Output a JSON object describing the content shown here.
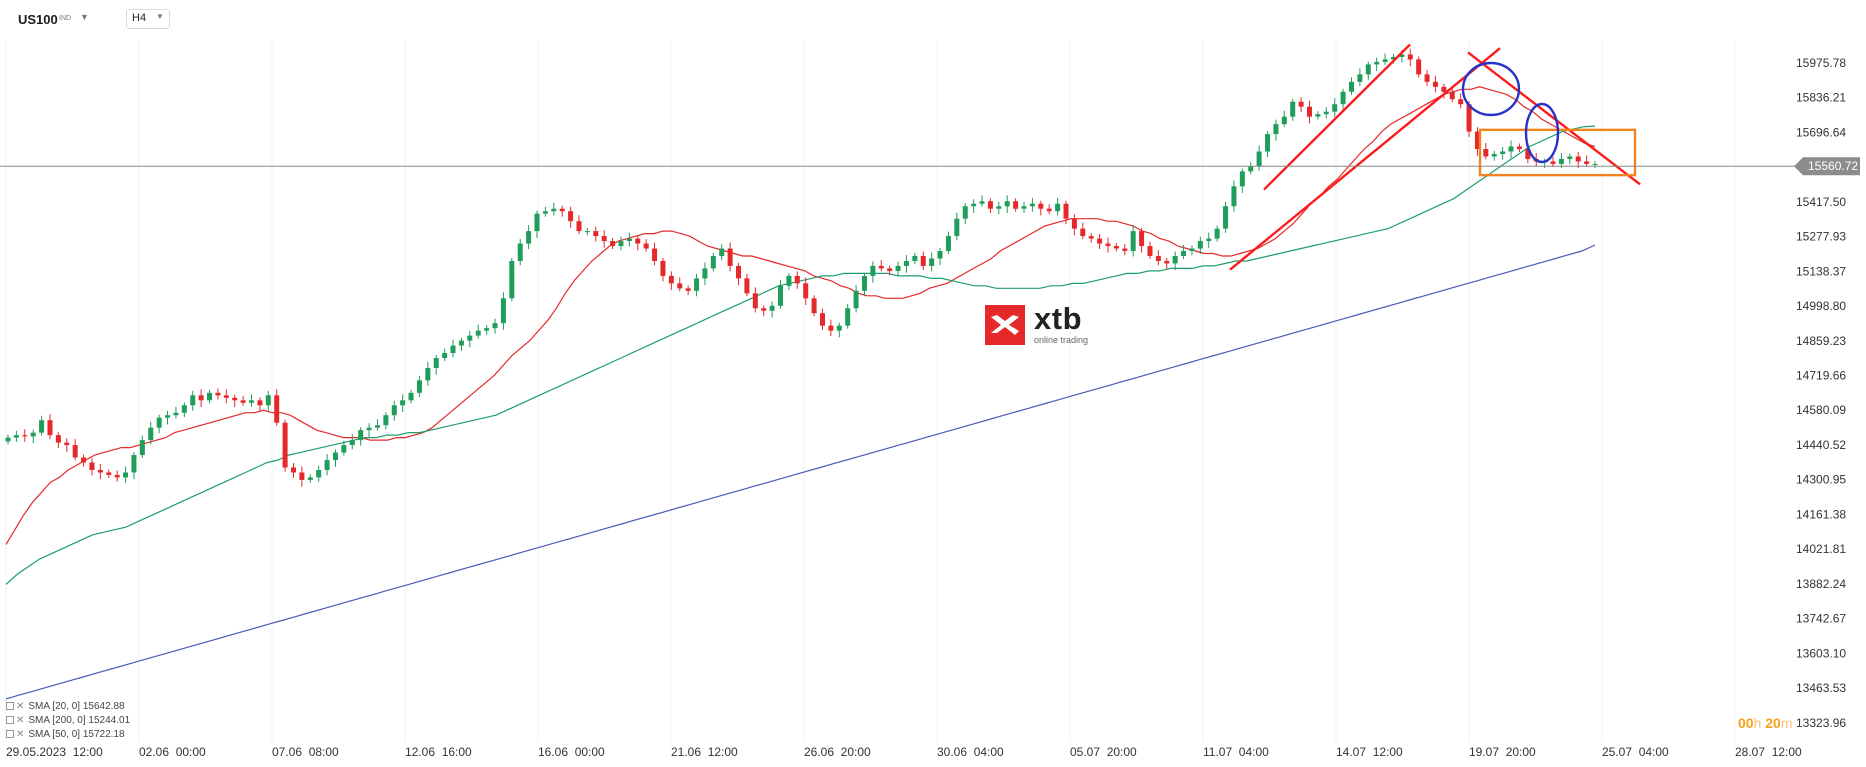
{
  "header": {
    "symbol": "US100",
    "symbol_suffix": "IND",
    "timeframe": "H4",
    "caret": "▼"
  },
  "logo": {
    "name": "xtb",
    "tagline": "online trading"
  },
  "legend": [
    {
      "label": "SMA [20, 0] 15642.88"
    },
    {
      "label": "SMA [200, 0] 15244.01"
    },
    {
      "label": "SMA [50, 0] 15722.18"
    }
  ],
  "countdown": {
    "hours": "00",
    "h_unit": "h",
    "minutes": "20",
    "m_unit": "m"
  },
  "colors": {
    "up": "#1e9e5a",
    "down": "#e5282a",
    "sma20": "#e5282a",
    "sma50": "#1e9e6e",
    "sma200": "#4a5ab8",
    "trend": "#ff1a1a",
    "box": "#f58220",
    "circle": "#2733c7",
    "current": "#888888"
  },
  "chart_data": {
    "type": "candlestick",
    "symbol": "US100",
    "timeframe": "H4",
    "ylim": [
      13254.7,
      16068.1
    ],
    "y_ticks": [
      "15975.78",
      "15836.21",
      "15696.64",
      "15417.50",
      "15277.93",
      "15138.37",
      "14998.80",
      "14859.23",
      "14719.66",
      "14580.09",
      "14440.52",
      "14300.95",
      "14161.38",
      "14021.81",
      "13882.24",
      "13742.67",
      "13603.10",
      "13463.53",
      "13323.96"
    ],
    "current_price": "15560.72",
    "current_price_value": 15560.72,
    "x_labels": [
      "29.05.2023  12:00",
      "02.06  00:00",
      "07.06  08:00",
      "12.06  16:00",
      "16.06  00:00",
      "21.06  12:00",
      "26.06  20:00",
      "30.06  04:00",
      "05.07  20:00",
      "11.07  04:00",
      "14.07  12:00",
      "19.07  20:00",
      "25.07  04:00",
      "28.07  12:00"
    ],
    "candle_closes": [
      14470,
      14480,
      14475,
      14490,
      14540,
      14480,
      14450,
      14440,
      14390,
      14370,
      14340,
      14330,
      14320,
      14310,
      14330,
      14400,
      14460,
      14510,
      14550,
      14560,
      14570,
      14600,
      14640,
      14620,
      14650,
      14640,
      14630,
      14620,
      14610,
      14620,
      14600,
      14640,
      14530,
      14350,
      14330,
      14300,
      14310,
      14340,
      14380,
      14410,
      14440,
      14460,
      14500,
      14510,
      14520,
      14560,
      14600,
      14620,
      14650,
      14700,
      14750,
      14790,
      14810,
      14840,
      14860,
      14880,
      14900,
      14910,
      14930,
      15030,
      15180,
      15250,
      15300,
      15370,
      15380,
      15390,
      15380,
      15340,
      15300,
      15300,
      15280,
      15260,
      15240,
      15260,
      15270,
      15250,
      15230,
      15180,
      15120,
      15090,
      15070,
      15060,
      15110,
      15150,
      15200,
      15230,
      15160,
      15110,
      15050,
      14990,
      14980,
      15000,
      15080,
      15120,
      15090,
      15030,
      14970,
      14920,
      14900,
      14920,
      14990,
      15060,
      15120,
      15160,
      15150,
      15140,
      15160,
      15180,
      15200,
      15160,
      15190,
      15220,
      15280,
      15350,
      15400,
      15410,
      15420,
      15390,
      15400,
      15420,
      15390,
      15400,
      15410,
      15390,
      15380,
      15410,
      15350,
      15310,
      15280,
      15270,
      15250,
      15240,
      15230,
      15220,
      15300,
      15240,
      15200,
      15180,
      15170,
      15200,
      15220,
      15230,
      15260,
      15270,
      15310,
      15400,
      15480,
      15540,
      15560,
      15620,
      15690,
      15730,
      15760,
      15820,
      15800,
      15760,
      15770,
      15780,
      15810,
      15860,
      15900,
      15930,
      15970,
      15980,
      15990,
      16000,
      16010,
      15990,
      15930,
      15900,
      15880,
      15860,
      15830,
      15810,
      15700,
      15630,
      15600,
      15610,
      15620,
      15640,
      15630,
      15590,
      15580,
      15580,
      15570,
      15590,
      15600,
      15580,
      15570,
      15570
    ],
    "series": [
      {
        "name": "SMA [20, 0] 15642.88",
        "start_index": 0,
        "values": [
          14040,
          14100,
          14160,
          14210,
          14250,
          14290,
          14310,
          14340,
          14360,
          14380,
          14400,
          14410,
          14420,
          14430,
          14430,
          14440,
          14450,
          14460,
          14470,
          14490,
          14500,
          14510,
          14520,
          14530,
          14540,
          14550,
          14560,
          14570,
          14570,
          14580,
          14570,
          14570,
          14560,
          14540,
          14520,
          14500,
          14490,
          14480,
          14470,
          14470,
          14470,
          14460,
          14460,
          14460,
          14470,
          14470,
          14480,
          14490,
          14510,
          14540,
          14570,
          14600,
          14630,
          14660,
          14690,
          14720,
          14760,
          14800,
          14830,
          14860,
          14900,
          14940,
          14990,
          15050,
          15100,
          15140,
          15180,
          15210,
          15240,
          15260,
          15270,
          15280,
          15290,
          15290,
          15300,
          15300,
          15290,
          15280,
          15260,
          15240,
          15230,
          15220,
          15210,
          15200,
          15200,
          15190,
          15180,
          15170,
          15160,
          15150,
          15140,
          15120,
          15110,
          15100,
          15080,
          15070,
          15050,
          15040,
          15040,
          15030,
          15030,
          15030,
          15040,
          15050,
          15070,
          15080,
          15090,
          15110,
          15130,
          15150,
          15170,
          15190,
          15220,
          15240,
          15260,
          15280,
          15300,
          15320,
          15330,
          15340,
          15350,
          15350,
          15350,
          15350,
          15340,
          15340,
          15330,
          15320,
          15300,
          15290,
          15270,
          15260,
          15240,
          15230,
          15220,
          15210,
          15210,
          15200,
          15200,
          15210,
          15220,
          15230,
          15250,
          15270,
          15300,
          15330,
          15370,
          15410,
          15440,
          15480,
          15510,
          15550,
          15590,
          15630,
          15660,
          15700,
          15730,
          15750,
          15770,
          15790,
          15810,
          15830,
          15850,
          15860,
          15870,
          15870,
          15880,
          15870,
          15860,
          15850,
          15830,
          15800,
          15780,
          15750,
          15730,
          15710,
          15690,
          15670,
          15650,
          15640
        ]
      },
      {
        "name": "SMA [200, 0] 15244.01",
        "start_index": 0,
        "values": [
          13420,
          13435,
          13450,
          13465,
          13480,
          13495,
          13510,
          13525,
          13540,
          13555,
          13570,
          13585,
          13600,
          13615,
          13630,
          13645,
          13660,
          13675,
          13690,
          13705,
          13720,
          13735,
          13750,
          13765,
          13780,
          13795,
          13810,
          13825,
          13840,
          13855,
          13870,
          13885,
          13900,
          13915,
          13930,
          13945,
          13960,
          13975,
          13990,
          14005,
          14020,
          14035,
          14050,
          14065,
          14080,
          14095,
          14110,
          14125,
          14140,
          14155,
          14170,
          14185,
          14200,
          14215,
          14230,
          14245,
          14260,
          14275,
          14290,
          14305,
          14320,
          14335,
          14350,
          14365,
          14380,
          14395,
          14410,
          14425,
          14440,
          14455,
          14470,
          14485,
          14500,
          14515,
          14530,
          14545,
          14560,
          14575,
          14590,
          14605,
          14620,
          14635,
          14650,
          14665,
          14680,
          14695,
          14710,
          14725,
          14740,
          14755,
          14770,
          14785,
          14800,
          14815,
          14830,
          14845,
          14860,
          14875,
          14890,
          14905,
          14920,
          14935,
          14950,
          14965,
          14980,
          14995,
          15010,
          15025,
          15040,
          15055,
          15070,
          15085,
          15100,
          15115,
          15130,
          15145,
          15160,
          15175,
          15190,
          15205,
          15220,
          15244
        ]
      },
      {
        "name": "SMA [50, 0] 15722.18",
        "start_index": 0,
        "values": [
          13880,
          13920,
          13950,
          13980,
          14000,
          14020,
          14040,
          14060,
          14080,
          14090,
          14100,
          14110,
          14130,
          14150,
          14170,
          14190,
          14210,
          14230,
          14250,
          14270,
          14290,
          14310,
          14330,
          14350,
          14370,
          14380,
          14400,
          14410,
          14420,
          14430,
          14440,
          14450,
          14460,
          14470,
          14470,
          14480,
          14480,
          14490,
          14490,
          14500,
          14510,
          14520,
          14530,
          14540,
          14550,
          14560,
          14580,
          14600,
          14620,
          14640,
          14660,
          14680,
          14700,
          14720,
          14740,
          14760,
          14780,
          14800,
          14820,
          14840,
          14860,
          14880,
          14900,
          14920,
          14940,
          14960,
          14980,
          15000,
          15020,
          15040,
          15060,
          15080,
          15090,
          15100,
          15110,
          15120,
          15120,
          15130,
          15130,
          15130,
          15130,
          15130,
          15120,
          15120,
          15120,
          15110,
          15110,
          15100,
          15090,
          15080,
          15080,
          15070,
          15070,
          15070,
          15070,
          15070,
          15080,
          15080,
          15090,
          15090,
          15100,
          15110,
          15120,
          15130,
          15130,
          15140,
          15140,
          15150,
          15150,
          15150,
          15160,
          15160,
          15170,
          15180,
          15180,
          15190,
          15200,
          15210,
          15220,
          15230,
          15240,
          15250,
          15260,
          15270,
          15280,
          15290,
          15300,
          15310,
          15330,
          15350,
          15370,
          15390,
          15410,
          15430,
          15460,
          15490,
          15520,
          15550,
          15580,
          15610,
          15640,
          15660,
          15680,
          15700,
          15710,
          15720,
          15722
        ]
      }
    ],
    "annotations": [
      {
        "type": "trendline",
        "name": "channel-upper",
        "from": [
          "11.07",
          15467
        ],
        "to": [
          "17.07",
          16050
        ]
      },
      {
        "type": "trendline",
        "name": "channel-lower",
        "from": [
          "11.07",
          15145
        ],
        "to": [
          "18.07",
          16035
        ]
      },
      {
        "type": "trendline",
        "name": "descending",
        "from": [
          "18.07",
          16018
        ],
        "to": [
          "24.07",
          15488
        ]
      },
      {
        "type": "rectangle",
        "name": "consolidation-box",
        "top": 15707,
        "bottom": 15525
      },
      {
        "type": "ellipse",
        "name": "circle-1"
      },
      {
        "type": "ellipse",
        "name": "circle-2"
      }
    ]
  }
}
